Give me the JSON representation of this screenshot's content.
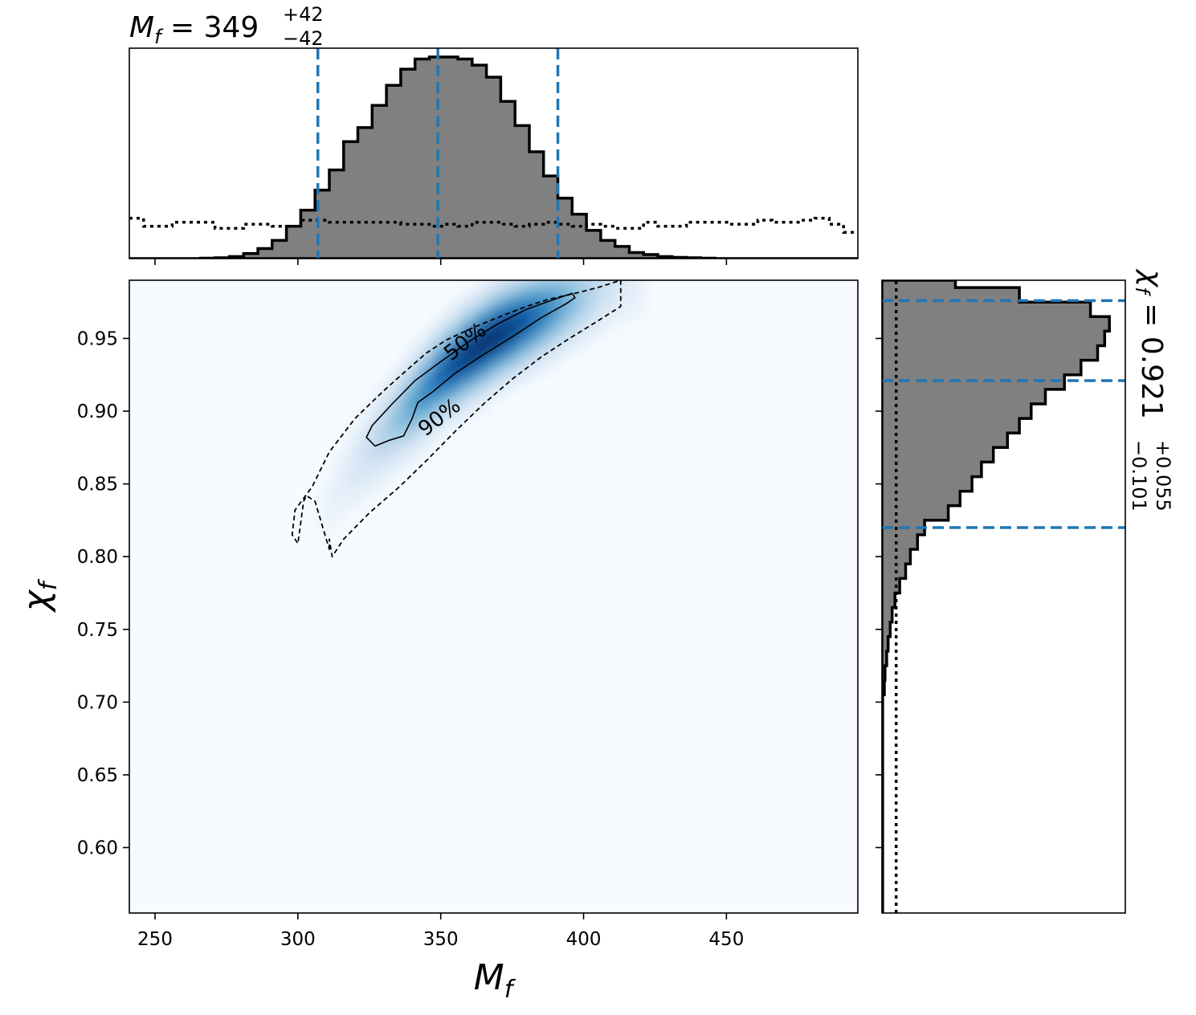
{
  "chart_data": [
    {
      "type": "heatmap",
      "panel": "joint",
      "xlabel": "M_f",
      "ylabel": "χ_f",
      "xlim": [
        241,
        496
      ],
      "ylim": [
        0.555,
        0.99
      ],
      "xticks": [
        250,
        300,
        350,
        400,
        450
      ],
      "yticks": [
        0.6,
        0.65,
        0.7,
        0.75,
        0.8,
        0.85,
        0.9,
        0.95
      ],
      "xtick_labels": [
        "250",
        "300",
        "350",
        "400",
        "450"
      ],
      "ytick_labels": [
        "0.60",
        "0.65",
        "0.70",
        "0.75",
        "0.80",
        "0.85",
        "0.90",
        "0.95"
      ],
      "colormap": "Blues",
      "density_ridge": {
        "x": [
          275,
          290,
          300,
          310,
          320,
          330,
          340,
          350,
          360,
          370,
          380,
          390,
          400,
          410
        ],
        "y": [
          0.715,
          0.765,
          0.805,
          0.835,
          0.862,
          0.885,
          0.905,
          0.925,
          0.94,
          0.953,
          0.963,
          0.972,
          0.98,
          0.988
        ]
      },
      "contours": [
        {
          "label": "50%",
          "style": "solid",
          "x": [
            324,
            326,
            333,
            341,
            350,
            360,
            370,
            380,
            390,
            396,
            397,
            394,
            385,
            375,
            365,
            355,
            347,
            342,
            340,
            337,
            332,
            327,
            324
          ],
          "y": [
            0.882,
            0.89,
            0.905,
            0.921,
            0.934,
            0.948,
            0.96,
            0.97,
            0.977,
            0.981,
            0.978,
            0.974,
            0.964,
            0.951,
            0.939,
            0.926,
            0.913,
            0.906,
            0.895,
            0.883,
            0.88,
            0.876,
            0.882
          ]
        },
        {
          "label": "90%",
          "style": "dashed",
          "x": [
            311,
            311,
            312,
            316,
            325,
            335,
            345,
            355,
            365,
            375,
            385,
            395,
            405,
            413,
            413,
            405,
            397,
            388,
            380,
            372,
            362,
            352,
            345,
            338,
            330,
            320,
            311,
            305,
            299,
            298,
            300,
            302,
            303,
            306,
            311
          ],
          "y": [
            0.805,
            0.812,
            0.8,
            0.812,
            0.83,
            0.847,
            0.866,
            0.886,
            0.905,
            0.922,
            0.937,
            0.95,
            0.962,
            0.972,
            0.99,
            0.985,
            0.981,
            0.977,
            0.972,
            0.966,
            0.958,
            0.949,
            0.94,
            0.928,
            0.914,
            0.895,
            0.872,
            0.848,
            0.832,
            0.815,
            0.809,
            0.838,
            0.842,
            0.838,
            0.805
          ]
        }
      ],
      "contour_labels": [
        {
          "text": "50%",
          "x": 360,
          "y": 0.944
        },
        {
          "text": "90%",
          "x": 351,
          "y": 0.892
        }
      ]
    },
    {
      "type": "bar",
      "panel": "marginal-top",
      "title": "M_f = 349 +42 −42",
      "title_parts": {
        "symbol": "M",
        "sub": "f",
        "eq": " = 349",
        "sup": "+42",
        "low": "−42"
      },
      "bin_edges": [
        241,
        246,
        251,
        256,
        261,
        266,
        271,
        276,
        281,
        286,
        291,
        296,
        301,
        306,
        311,
        316,
        321,
        326,
        331,
        336,
        341,
        346,
        351,
        356,
        361,
        366,
        371,
        376,
        381,
        386,
        391,
        396,
        401,
        406,
        411,
        416,
        421,
        426,
        431,
        436,
        441,
        446,
        451,
        456,
        461,
        466,
        471,
        476,
        481,
        486,
        491,
        496
      ],
      "counts": [
        0,
        0,
        0,
        0,
        0,
        0.2,
        0.4,
        1.0,
        2.5,
        5,
        9,
        16,
        24,
        34,
        44,
        58,
        65,
        76,
        86,
        94,
        99,
        100,
        100,
        99,
        96,
        90,
        78,
        66,
        53,
        41,
        30,
        22,
        14,
        9,
        6,
        3,
        2,
        1,
        0.6,
        0.4,
        0.2,
        0,
        0,
        0,
        0,
        0,
        0,
        0,
        0,
        0,
        0
      ],
      "prior_counts": [
        20,
        16,
        16,
        18,
        18,
        18,
        15,
        15,
        17,
        17,
        16,
        16,
        19,
        19,
        18,
        18,
        18,
        18,
        18,
        17,
        17,
        16,
        17,
        16,
        18,
        18,
        17,
        16,
        17,
        18,
        17,
        16,
        17,
        16,
        15,
        15,
        18,
        16,
        16,
        18,
        18,
        18,
        17,
        17,
        19,
        18,
        18,
        19,
        20,
        17,
        13
      ],
      "ylim": [
        0,
        102
      ],
      "quantiles": [
        307,
        349,
        391
      ],
      "xticks": [
        250,
        300,
        350,
        400,
        450
      ]
    },
    {
      "type": "bar",
      "panel": "marginal-right",
      "orientation": "horizontal",
      "title": "χ_f = 0.921 +0.055 −0.101",
      "title_parts": {
        "symbol": "χ",
        "sub": "f",
        "eq": " = 0.921",
        "sup": "+0.055",
        "low": "−0.101"
      },
      "bin_edges": [
        0.555,
        0.705,
        0.715,
        0.725,
        0.735,
        0.745,
        0.755,
        0.765,
        0.775,
        0.785,
        0.795,
        0.805,
        0.815,
        0.825,
        0.835,
        0.845,
        0.855,
        0.865,
        0.875,
        0.885,
        0.895,
        0.905,
        0.915,
        0.925,
        0.935,
        0.945,
        0.955,
        0.965,
        0.975,
        0.985,
        0.99
      ],
      "counts": [
        0.3,
        1.0,
        1.3,
        2.0,
        2.6,
        3.5,
        4.3,
        5.5,
        7.5,
        10,
        12,
        15,
        18,
        28,
        33,
        38,
        42,
        47,
        53,
        58,
        63,
        69,
        77,
        84,
        91,
        94,
        96,
        88,
        58,
        31
      ],
      "prior_counts": [
        6,
        6,
        6,
        6,
        6,
        6,
        6,
        6,
        6,
        6,
        6,
        6,
        6,
        6,
        6,
        6,
        6,
        6,
        6,
        6,
        6,
        6,
        6,
        6,
        6,
        6,
        6,
        6,
        6,
        6
      ],
      "xlim": [
        0,
        100
      ],
      "quantiles": [
        0.82,
        0.921,
        0.976
      ],
      "yticks": [
        0.6,
        0.65,
        0.7,
        0.75,
        0.8,
        0.85,
        0.9,
        0.95
      ]
    }
  ],
  "colors": {
    "hist_fill": "#808080",
    "hist_edge": "#000000",
    "quantile_line": "#1f77b4",
    "prior_line": "#000000",
    "contour": "#000000",
    "cmap_low": "#f7fbff",
    "cmap_high": "#08306b"
  }
}
